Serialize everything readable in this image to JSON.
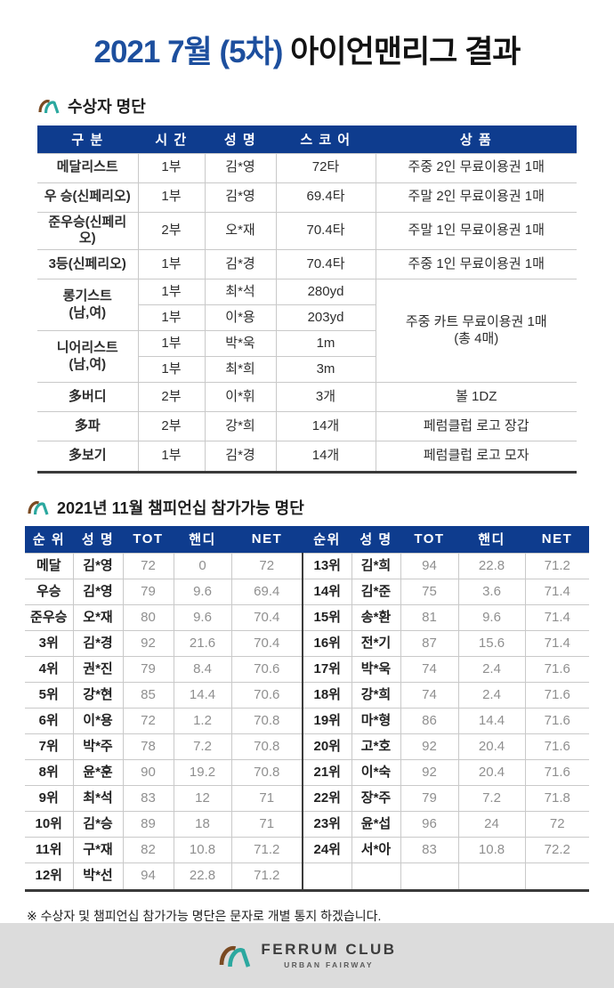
{
  "title": {
    "blue": "2021 7월 (5차)",
    "black": "아이언맨리그 결과"
  },
  "colors": {
    "header_navy": "#0e3c8e",
    "title_blue": "#1d4f9e",
    "logo_teal": "#2ba89f",
    "logo_brown": "#7a4a22",
    "footer_gray": "#dcdcdc",
    "number_gray": "#8f8f8f"
  },
  "awards": {
    "heading": "수상자 명단",
    "headers": [
      "구 분",
      "시 간",
      "성 명",
      "스 코 어",
      "상 품"
    ],
    "rows": [
      {
        "cells": [
          {
            "t": "메달리스트",
            "cls": "cat"
          },
          {
            "t": "1부"
          },
          {
            "t": "김*영"
          },
          {
            "t": "72타"
          },
          {
            "t": "주중 2인 무료이용권 1매"
          }
        ]
      },
      {
        "cells": [
          {
            "t": "우 승(신페리오)",
            "cls": "cat"
          },
          {
            "t": "1부"
          },
          {
            "t": "김*영"
          },
          {
            "t": "69.4타"
          },
          {
            "t": "주말 2인 무료이용권 1매"
          }
        ]
      },
      {
        "cells": [
          {
            "t": "준우승(신페리오)",
            "cls": "cat"
          },
          {
            "t": "2부"
          },
          {
            "t": "오*재"
          },
          {
            "t": "70.4타"
          },
          {
            "t": "주말 1인 무료이용권 1매"
          }
        ]
      },
      {
        "cells": [
          {
            "t": "3등(신페리오)",
            "cls": "cat"
          },
          {
            "t": "1부"
          },
          {
            "t": "김*경"
          },
          {
            "t": "70.4타"
          },
          {
            "t": "주중 1인 무료이용권 1매"
          }
        ]
      },
      {
        "sub": true,
        "cells": [
          {
            "t": "롱기스트\n(남,여)",
            "cls": "cat",
            "rs": 2
          },
          {
            "t": "1부"
          },
          {
            "t": "최*석"
          },
          {
            "t": "280yd"
          },
          {
            "t": "주중 카트 무료이용권 1매\n(총 4매)",
            "rs": 4
          }
        ]
      },
      {
        "sub": true,
        "cells": [
          {
            "t": "1부"
          },
          {
            "t": "이*용"
          },
          {
            "t": "203yd"
          }
        ]
      },
      {
        "sub": true,
        "cells": [
          {
            "t": "니어리스트\n(남,여)",
            "cls": "cat",
            "rs": 2
          },
          {
            "t": "1부"
          },
          {
            "t": "박*욱"
          },
          {
            "t": "1m"
          }
        ]
      },
      {
        "sub": true,
        "cells": [
          {
            "t": "1부"
          },
          {
            "t": "최*희"
          },
          {
            "t": "3m"
          }
        ]
      },
      {
        "cells": [
          {
            "t": "多버디",
            "cls": "cat"
          },
          {
            "t": "2부"
          },
          {
            "t": "이*휘"
          },
          {
            "t": "3개"
          },
          {
            "t": "볼 1DZ"
          }
        ]
      },
      {
        "cells": [
          {
            "t": "多파",
            "cls": "cat"
          },
          {
            "t": "2부"
          },
          {
            "t": "강*희"
          },
          {
            "t": "14개"
          },
          {
            "t": "페럼클럽 로고 장갑"
          }
        ]
      },
      {
        "cells": [
          {
            "t": "多보기",
            "cls": "cat"
          },
          {
            "t": "1부"
          },
          {
            "t": "김*경"
          },
          {
            "t": "14개"
          },
          {
            "t": "페럼클럽 로고 모자"
          }
        ]
      }
    ]
  },
  "championship": {
    "heading": "2021년 11월 챔피언십 참가가능 명단",
    "headers": [
      "순 위",
      "성 명",
      "TOT",
      "핸디",
      "NET",
      "순위",
      "성 명",
      "TOT",
      "핸디",
      "NET"
    ],
    "rows": [
      [
        "메달",
        "김*영",
        "72",
        "0",
        "72",
        "13위",
        "김*희",
        "94",
        "22.8",
        "71.2"
      ],
      [
        "우승",
        "김*영",
        "79",
        "9.6",
        "69.4",
        "14위",
        "김*준",
        "75",
        "3.6",
        "71.4"
      ],
      [
        "준우승",
        "오*재",
        "80",
        "9.6",
        "70.4",
        "15위",
        "송*환",
        "81",
        "9.6",
        "71.4"
      ],
      [
        "3위",
        "김*경",
        "92",
        "21.6",
        "70.4",
        "16위",
        "전*기",
        "87",
        "15.6",
        "71.4"
      ],
      [
        "4위",
        "권*진",
        "79",
        "8.4",
        "70.6",
        "17위",
        "박*욱",
        "74",
        "2.4",
        "71.6"
      ],
      [
        "5위",
        "강*현",
        "85",
        "14.4",
        "70.6",
        "18위",
        "강*희",
        "74",
        "2.4",
        "71.6"
      ],
      [
        "6위",
        "이*용",
        "72",
        "1.2",
        "70.8",
        "19위",
        "마*형",
        "86",
        "14.4",
        "71.6"
      ],
      [
        "7위",
        "박*주",
        "78",
        "7.2",
        "70.8",
        "20위",
        "고*호",
        "92",
        "20.4",
        "71.6"
      ],
      [
        "8위",
        "윤*훈",
        "90",
        "19.2",
        "70.8",
        "21위",
        "이*숙",
        "92",
        "20.4",
        "71.6"
      ],
      [
        "9위",
        "최*석",
        "83",
        "12",
        "71",
        "22위",
        "장*주",
        "79",
        "7.2",
        "71.8"
      ],
      [
        "10위",
        "김*승",
        "89",
        "18",
        "71",
        "23위",
        "윤*섭",
        "96",
        "24",
        "72"
      ],
      [
        "11위",
        "구*재",
        "82",
        "10.8",
        "71.2",
        "24위",
        "서*아",
        "83",
        "10.8",
        "72.2"
      ],
      [
        "12위",
        "박*선",
        "94",
        "22.8",
        "71.2",
        "",
        "",
        "",
        "",
        ""
      ]
    ]
  },
  "footnote": "※ 수상자 및 챔피언십 참가가능 명단은 문자로 개별 통지 하겠습니다.",
  "footer": {
    "brand": "FERRUM CLUB",
    "tagline": "URBAN FAIRWAY"
  }
}
